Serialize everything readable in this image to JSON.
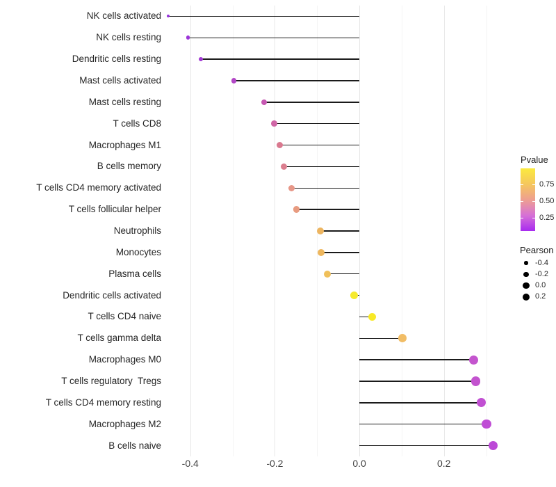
{
  "chart_data": {
    "type": "lollipop",
    "orientation": "horizontal",
    "title": "",
    "xlabel": "",
    "ylabel": "",
    "categories": [
      "NK cells activated",
      "NK cells resting",
      "Dendritic cells resting",
      "Mast cells activated",
      "Mast cells resting",
      "T cells CD8",
      "Macrophages M1",
      "B cells memory",
      "T cells CD4 memory activated",
      "T cells follicular helper",
      "Neutrophils",
      "Monocytes",
      "Plasma cells",
      "Dendritic cells activated",
      "T cells CD4 naive",
      "T cells gamma delta",
      "Macrophages M0",
      "T cells regulatory  Tregs",
      "T cells CD4 memory resting",
      "Macrophages M2",
      "B cells naive"
    ],
    "series": [
      {
        "name": "Pearson",
        "values": [
          -0.452,
          -0.405,
          -0.375,
          -0.297,
          -0.225,
          -0.202,
          -0.189,
          -0.179,
          -0.16,
          -0.149,
          -0.092,
          -0.09,
          -0.076,
          -0.012,
          0.03,
          0.102,
          0.271,
          0.275,
          0.289,
          0.301,
          0.316
        ]
      }
    ],
    "point_colors": [
      "#9632DC",
      "#9C35D8",
      "#A139D3",
      "#B246C6",
      "#C658B2",
      "#D066A6",
      "#D9798F",
      "#DB7E8F",
      "#E79788",
      "#E89B80",
      "#EDB560",
      "#EEB75E",
      "#F0C05A",
      "#F6EA2E",
      "#F8E927",
      "#F1BD66",
      "#C455CE",
      "#C353CF",
      "#C150D2",
      "#BF4DD5",
      "#BC49D7"
    ],
    "xlim": [
      -0.49,
      0.355
    ],
    "x_ticks": [
      -0.4,
      -0.2,
      0.0,
      0.2
    ],
    "x_tick_labels": [
      "-0.4",
      "-0.2",
      "0.0",
      "0.2"
    ],
    "x_minor_ticks": [
      -0.3,
      -0.1,
      0.1,
      0.3
    ],
    "grid": true,
    "baseline": 0,
    "size_scale": {
      "vmin": -0.47,
      "vmax": 0.33,
      "rmin": 1.2,
      "rmax": 6.8
    },
    "legends": {
      "pvalue": {
        "title": "Pvalue",
        "tick_labels": [
          "0.75",
          "0.50",
          "0.25"
        ],
        "tick_pos": [
          0.256,
          0.522,
          0.789
        ],
        "gradient_top_to_bottom": [
          "#FBEA3F",
          "#F5C75D",
          "#EE9F90",
          "#D671D6",
          "#A82BEF"
        ]
      },
      "pearson": {
        "title": "Pearson",
        "entries": [
          {
            "label": "-0.4",
            "r": 2.7
          },
          {
            "label": "-0.2",
            "r": 3.7
          },
          {
            "label": "0.0",
            "r": 4.6
          },
          {
            "label": "0.2",
            "r": 5.4
          }
        ]
      }
    },
    "colors": {
      "stem": "#1a1a1a",
      "grid_major": "#e7e7e7",
      "grid_minor": "#f3f3f3",
      "legend_dot": "#000000"
    }
  }
}
